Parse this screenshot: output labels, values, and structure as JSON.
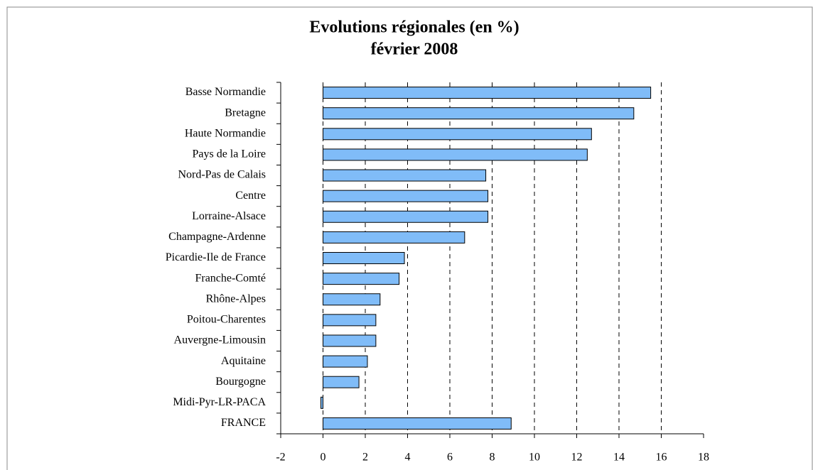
{
  "chart_data": {
    "type": "barh",
    "title": "Evolutions régionales (en %)",
    "subtitle": "février 2008",
    "categories": [
      "Basse Normandie",
      "Bretagne",
      "Haute Normandie",
      "Pays de la Loire",
      "Nord-Pas de Calais",
      "Centre",
      "Lorraine-Alsace",
      "Champagne-Ardenne",
      "Picardie-Ile de France",
      "Franche-Comté",
      "Rhône-Alpes",
      "Poitou-Charentes",
      "Auvergne-Limousin",
      "Aquitaine",
      "Bourgogne",
      "Midi-Pyr-LR-PACA",
      "FRANCE"
    ],
    "values": [
      15.5,
      14.7,
      12.7,
      12.5,
      7.7,
      7.8,
      7.8,
      6.7,
      3.85,
      3.6,
      2.7,
      2.5,
      2.5,
      2.1,
      1.7,
      -0.1,
      8.9
    ],
    "color": "#80bcf8",
    "xlim": [
      -2,
      18
    ],
    "xticks": [
      -2,
      0,
      2,
      4,
      6,
      8,
      10,
      12,
      14,
      16,
      18
    ],
    "grid": true
  }
}
